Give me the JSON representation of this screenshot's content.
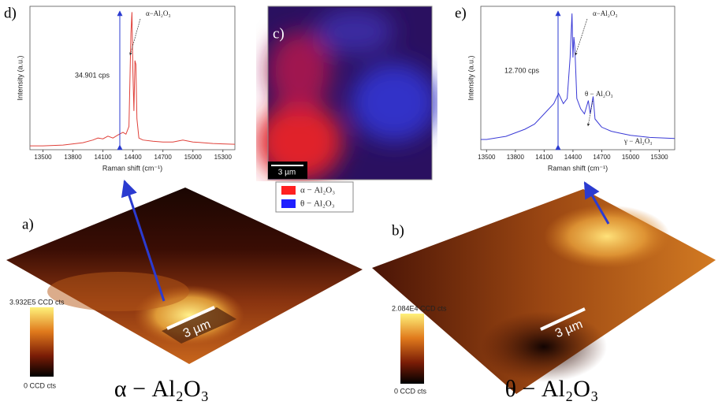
{
  "chart_data": [
    {
      "type": "line",
      "panel_label": "d)",
      "xlabel": "Raman shift (cm⁻¹)",
      "ylabel": "Intensity (a.u.)",
      "annotations": [
        "34.901 cps",
        "α−Al₂O₃"
      ],
      "xlim": [
        13370,
        15420
      ],
      "ylim": [
        0,
        37
      ],
      "xticks": [
        13500,
        13800,
        14100,
        14400,
        14700,
        15000,
        15300
      ],
      "color": "#e0413a",
      "x": [
        13370,
        13500,
        13600,
        13700,
        13800,
        13900,
        14000,
        14050,
        14100,
        14150,
        14200,
        14250,
        14300,
        14330,
        14360,
        14380,
        14390,
        14400,
        14410,
        14420,
        14430,
        14440,
        14460,
        14500,
        14600,
        14700,
        14800,
        14900,
        15000,
        15100,
        15200,
        15300,
        15420
      ],
      "values": [
        1.0,
        1.0,
        1.1,
        1.2,
        1.5,
        1.8,
        2.5,
        3.0,
        2.8,
        3.5,
        3.0,
        3.8,
        4.5,
        4.0,
        6.0,
        30,
        35.5,
        20,
        10,
        23,
        22,
        8,
        3,
        2.5,
        2.2,
        2.0,
        2.0,
        2.5,
        2.0,
        1.8,
        1.6,
        1.5,
        1.4
      ]
    },
    {
      "type": "line",
      "panel_label": "e)",
      "xlabel": "Raman shift (cm⁻¹)",
      "ylabel": "Intensity (a.u.)",
      "annotations": [
        "12.700 cps",
        "α−Al₂O₃",
        "θ − Al₂O₃",
        "γ − Al₂O₃"
      ],
      "xlim": [
        13440,
        15460
      ],
      "ylim": [
        0,
        14
      ],
      "xticks": [
        13500,
        13800,
        14100,
        14400,
        14700,
        15000,
        15300
      ],
      "color": "#3a3ad6",
      "x": [
        13440,
        13500,
        13700,
        13900,
        14000,
        14100,
        14200,
        14250,
        14300,
        14340,
        14370,
        14390,
        14400,
        14410,
        14420,
        14440,
        14480,
        14520,
        14560,
        14580,
        14610,
        14630,
        14700,
        14800,
        14900,
        15000,
        15200,
        15460
      ],
      "values": [
        1.0,
        1.0,
        1.3,
        2.0,
        2.5,
        3.5,
        4.5,
        5.5,
        4.5,
        5.0,
        9.0,
        13.3,
        9.0,
        11.0,
        10.0,
        5.0,
        4.0,
        3.5,
        4.8,
        3.5,
        5.2,
        3.0,
        2.2,
        1.8,
        1.6,
        1.4,
        1.2,
        1.1
      ]
    }
  ],
  "map": {
    "panel_label": "c)",
    "scale_bar": "3 µm",
    "legend": [
      "α − Al₂O₃",
      "θ − Al₂O₃"
    ]
  },
  "surface_a": {
    "panel_label": "a)",
    "scale_bar": "3 µm",
    "colorbar_max": "3.932E5 CCD cts",
    "colorbar_min": "0 CCD cts",
    "caption": "α − Al₂O₃"
  },
  "surface_b": {
    "panel_label": "b)",
    "scale_bar": "3 µm",
    "colorbar_max": "2.084E4 CCD cts",
    "colorbar_min": "0 CCD cts",
    "caption": "θ − Al₂O₃"
  }
}
